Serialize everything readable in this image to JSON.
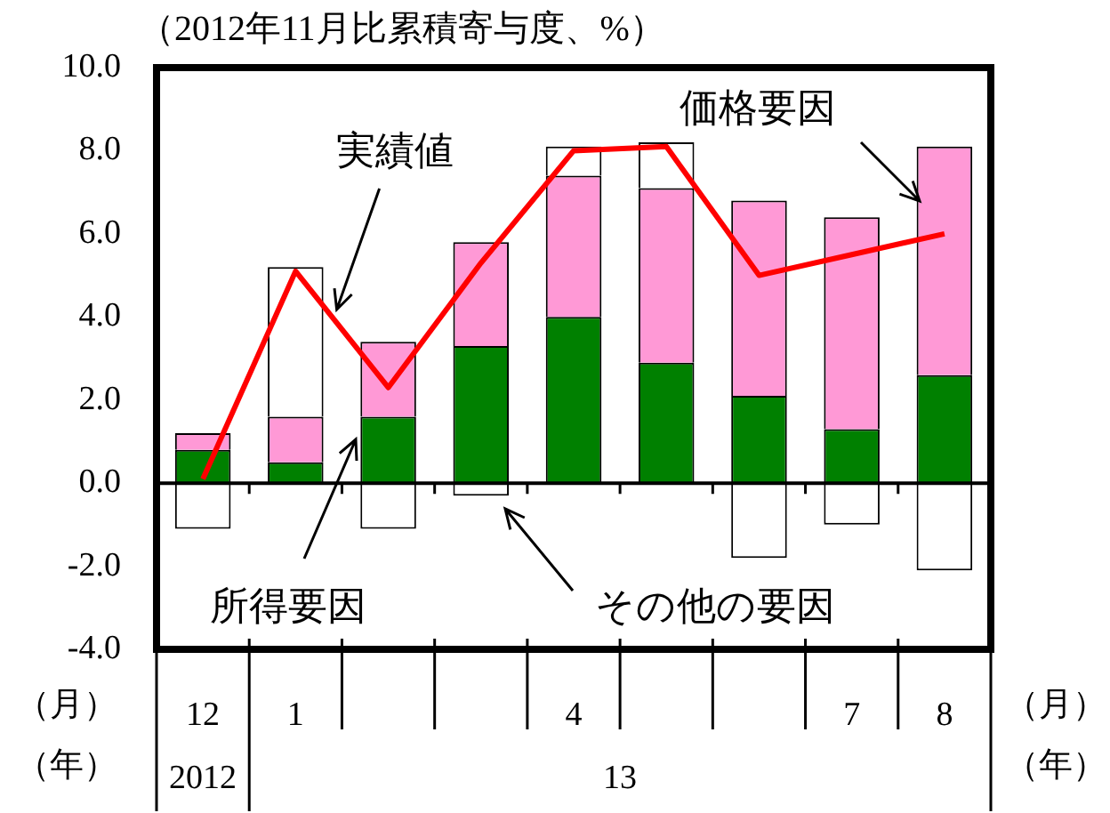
{
  "chart_data": {
    "type": "bar",
    "title": "（2012年11月比累積寄与度、%）",
    "stacked": true,
    "legend": false,
    "grid": false,
    "categories": [
      "12",
      "1",
      null,
      null,
      "4",
      null,
      null,
      "7",
      "8"
    ],
    "series": [
      {
        "name": "所得要因",
        "color": "#008000",
        "values": [
          0.8,
          0.5,
          1.6,
          3.3,
          4.0,
          2.9,
          2.1,
          1.3,
          2.6
        ]
      },
      {
        "name": "価格要因",
        "color": "#ff99d6",
        "values": [
          0.4,
          1.1,
          1.8,
          2.5,
          3.4,
          4.2,
          4.7,
          5.1,
          5.5
        ]
      },
      {
        "name": "その他の要因",
        "color": "#ffffff",
        "values": [
          -1.1,
          3.6,
          -1.1,
          -0.3,
          0.7,
          1.1,
          -1.8,
          -1.0,
          -2.1
        ]
      },
      {
        "name": "実績値",
        "type": "line",
        "color": "#ff0000",
        "marker": "none",
        "values": [
          0.1,
          5.1,
          2.3,
          5.3,
          8.0,
          8.1,
          5.0,
          5.5,
          6.0
        ]
      }
    ],
    "ylim": [
      -4,
      10
    ],
    "yticks": [
      {
        "value": -4,
        "label": "-4.0"
      },
      {
        "value": -2,
        "label": "-2.0"
      },
      {
        "value": 0,
        "label": "0.0"
      },
      {
        "value": 2,
        "label": "2.0"
      },
      {
        "value": 4,
        "label": "4.0"
      },
      {
        "value": 6,
        "label": "6.0"
      },
      {
        "value": 8,
        "label": "8.0"
      },
      {
        "value": 10,
        "label": "10.0"
      }
    ],
    "ref_lines": [
      {
        "axis": "y",
        "value": 0,
        "color": "#000000"
      }
    ],
    "annotations": [
      "（月）",
      "（年）",
      "2012",
      "13"
    ]
  }
}
